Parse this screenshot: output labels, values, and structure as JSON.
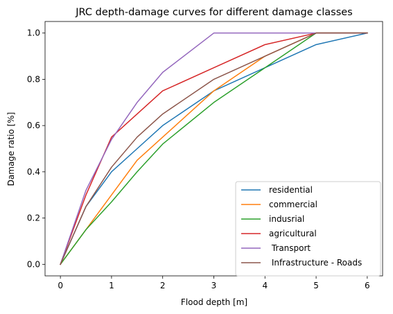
{
  "chart_data": {
    "type": "line",
    "title": "JRC depth-damage curves for different damage classes",
    "xlabel": "Flood depth [m]",
    "ylabel": "Damage ratio [%]",
    "xlim": [
      -0.3,
      6.3
    ],
    "ylim": [
      -0.05,
      1.05
    ],
    "xticks": [
      0,
      1,
      2,
      3,
      4,
      5,
      6
    ],
    "xtick_labels": [
      "0",
      "1",
      "2",
      "3",
      "4",
      "5",
      "6"
    ],
    "yticks": [
      0.0,
      0.2,
      0.4,
      0.6,
      0.8,
      1.0
    ],
    "ytick_labels": [
      "0.0",
      "0.2",
      "0.4",
      "0.6",
      "0.8",
      "1.0"
    ],
    "grid": false,
    "legend_position": "lower right",
    "x": [
      0,
      0.5,
      1,
      1.5,
      2,
      3,
      4,
      5,
      6
    ],
    "series": [
      {
        "name": "residential",
        "color": "#1f77b4",
        "values": [
          0,
          0.25,
          0.4,
          0.5,
          0.6,
          0.75,
          0.85,
          0.95,
          1.0
        ]
      },
      {
        "name": "commercial",
        "color": "#ff7f0e",
        "values": [
          0,
          0.15,
          0.3,
          0.45,
          0.55,
          0.75,
          0.9,
          1.0,
          1.0
        ]
      },
      {
        "name": "indusrial",
        "color": "#2ca02c",
        "values": [
          0,
          0.15,
          0.27,
          0.4,
          0.52,
          0.7,
          0.85,
          1.0,
          1.0
        ]
      },
      {
        "name": "agricultural",
        "color": "#d62728",
        "values": [
          0,
          0.3,
          0.55,
          0.65,
          0.75,
          0.85,
          0.95,
          1.0,
          1.0
        ]
      },
      {
        "name": " Transport",
        "color": "#9467bd",
        "values": [
          0,
          0.32,
          0.54,
          0.7,
          0.83,
          1.0,
          1.0,
          1.0,
          1.0
        ]
      },
      {
        "name": " Infrastructure - Roads",
        "color": "#8c564b",
        "values": [
          0,
          0.25,
          0.42,
          0.55,
          0.65,
          0.8,
          0.9,
          1.0,
          1.0
        ]
      }
    ]
  }
}
